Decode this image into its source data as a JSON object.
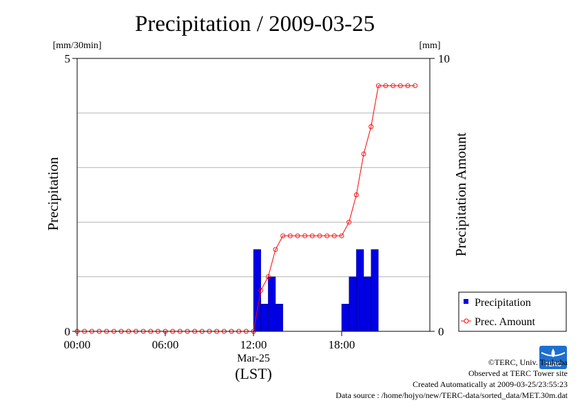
{
  "chart_data": {
    "type": "bar+line",
    "title": "Precipitation / 2009-03-25",
    "x_tick_labels": [
      "00:00",
      "06:00",
      "12:00",
      "18:00"
    ],
    "x_tick_hours": [
      0,
      6,
      12,
      18
    ],
    "x_date_label": "Mar-25",
    "x_axis_label": "(LST)",
    "xlim_hours": [
      0,
      24
    ],
    "left_axis": {
      "label": "Precipitation",
      "unit": "[mm/30min]",
      "range": [
        0,
        5
      ],
      "tick_labels": [
        "0",
        "5"
      ]
    },
    "right_axis": {
      "label": "Precipitation Amount",
      "unit": "[mm]",
      "range": [
        0,
        10
      ],
      "tick_labels": [
        "0",
        "10"
      ]
    },
    "gridlines": [
      1,
      2,
      3,
      4
    ],
    "series": [
      {
        "name": "Precipitation",
        "type": "bar",
        "axis": "left",
        "color": "#0000e6",
        "bar_width_hours": 0.5,
        "x_hours": [
          12.0,
          12.5,
          13.0,
          13.5,
          18.0,
          18.5,
          19.0,
          19.5,
          20.0
        ],
        "values": [
          1.5,
          0.5,
          1.0,
          0.5,
          0.5,
          1.0,
          1.5,
          1.0,
          1.5
        ]
      },
      {
        "name": "Prec. Amount",
        "type": "line",
        "axis": "right",
        "color": "#ff0000",
        "x_hours": [
          0,
          0.5,
          1,
          1.5,
          2,
          2.5,
          3,
          3.5,
          4,
          4.5,
          5,
          5.5,
          6,
          6.5,
          7,
          7.5,
          8,
          8.5,
          9,
          9.5,
          10,
          10.5,
          11,
          11.5,
          12,
          12.5,
          13,
          13.5,
          14,
          14.5,
          15,
          15.5,
          16,
          16.5,
          17,
          17.5,
          18,
          18.5,
          19,
          19.5,
          20,
          20.5,
          21,
          21.5,
          22,
          22.5,
          23
        ],
        "values": [
          0,
          0,
          0,
          0,
          0,
          0,
          0,
          0,
          0,
          0,
          0,
          0,
          0,
          0,
          0,
          0,
          0,
          0,
          0,
          0,
          0,
          0,
          0,
          0,
          0,
          1.5,
          2,
          3,
          3.5,
          3.5,
          3.5,
          3.5,
          3.5,
          3.5,
          3.5,
          3.5,
          3.5,
          4,
          5,
          6.5,
          7.5,
          9,
          9,
          9,
          9,
          9,
          9
        ]
      }
    ],
    "legend_position": "bottom-right",
    "legend": [
      "Precipitation",
      "Prec. Amount"
    ]
  },
  "credits": {
    "copyright": "©TERC, Univ. Tsukuba",
    "observed": "Observed at TERC Tower site",
    "created": "Created Automatically at 2009-03-25/23:55:23",
    "source": "Data source : /home/hojyo/new/TERC-data/sorted_data/MET.30m.dat",
    "logo_text": "TERC"
  }
}
